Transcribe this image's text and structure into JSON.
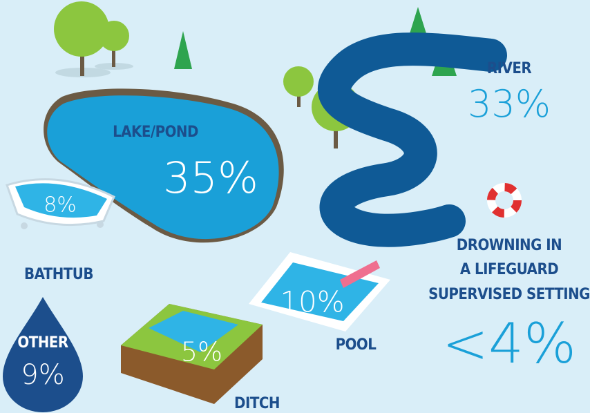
{
  "items": [
    {
      "label": "LAKE/POND",
      "value": "35%"
    },
    {
      "label": "RIVER",
      "value": "33%"
    },
    {
      "label": "BATHTUB",
      "value": "8%"
    },
    {
      "label": "POOL",
      "value": "10%"
    },
    {
      "label": "DITCH",
      "value": "5%"
    },
    {
      "label": "OTHER",
      "value": "9%"
    },
    {
      "label_lines": [
        "DROWNING IN",
        "A LIFEGUARD",
        "SUPERVISED SETTING"
      ],
      "value": "<4%"
    }
  ]
}
